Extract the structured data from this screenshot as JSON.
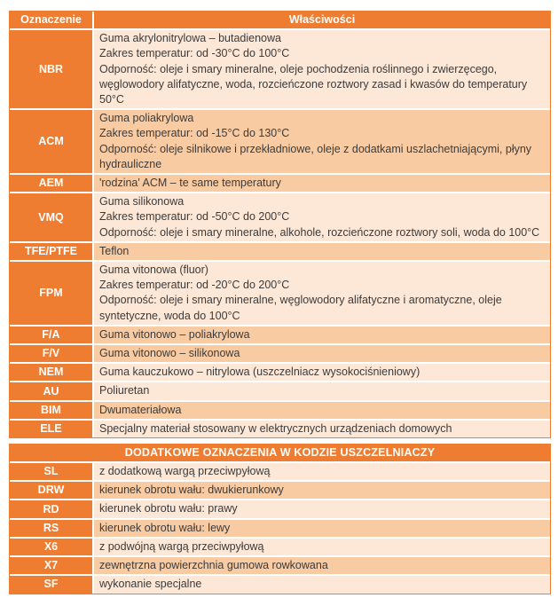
{
  "colors": {
    "accent_orange": "#EE7C31",
    "row_light": "#FDE7D6",
    "row_medium": "#F9CBA3",
    "header_text": "#FFFFFF",
    "body_text": "#3B3B3B"
  },
  "main_table": {
    "headers": {
      "code": "Oznaczenie",
      "properties": "Właściwości"
    },
    "rows": [
      {
        "code": "NBR",
        "desc": "Guma akrylonitrylowa – butadienowa\nZakres temperatur: od -30°C do 100°C\nOdporność: oleje i smary mineralne, oleje pochodzenia roślinnego i zwierzęcego, węglowodory alifatyczne, woda, rozcieńczone roztwory zasad i kwasów do temperatury 50°C"
      },
      {
        "code": "ACM",
        "desc": "Guma poliakrylowa\nZakres temperatur: od -15°C do 130°C\nOdporność: oleje silnikowe i przekładniowe, oleje z dodatkami uszlachetniającymi, płyny hydrauliczne"
      },
      {
        "code": "AEM",
        "desc": "'rodzina' ACM – te same temperatury"
      },
      {
        "code": "VMQ",
        "desc": "Guma silikonowa\nZakres temperatur: od -50°C do 200°C\nOdporność: oleje i smary mineralne, alkohole, rozcieńczone roztwory soli, woda do 100°C"
      },
      {
        "code": "TFE/PTFE",
        "desc": "Teflon"
      },
      {
        "code": "FPM",
        "desc": "Guma vitonowa (fluor)\nZakres temperatur: od -20°C do 200°C\nOdporność: oleje i smary mineralne, węglowodory alifatyczne i aromatyczne, oleje syntetyczne, woda do 100°C"
      },
      {
        "code": "F/A",
        "desc": "Guma vitonowo – poliakrylowa"
      },
      {
        "code": "F/V",
        "desc": "Guma vitonowo – silikonowa"
      },
      {
        "code": "NEM",
        "desc": "Guma kauczukowo – nitrylowa (uszczelniacz wysokociśnieniowy)"
      },
      {
        "code": "AU",
        "desc": "Poliuretan"
      },
      {
        "code": "BIM",
        "desc": "Dwumateriałowa"
      },
      {
        "code": "ELE",
        "desc": "Specjalny materiał stosowany w elektrycznych urządzeniach domowych"
      }
    ]
  },
  "extra_table": {
    "title": "DODATKOWE OZNACZENIA W KODZIE USZCZELNIACZY",
    "rows": [
      {
        "code": "SL",
        "desc": "z dodatkową wargą przeciwpyłową"
      },
      {
        "code": "DRW",
        "desc": "kierunek obrotu wału: dwukierunkowy"
      },
      {
        "code": "RD",
        "desc": "kierunek obrotu wału: prawy"
      },
      {
        "code": "RS",
        "desc": "kierunek obrotu wału: lewy"
      },
      {
        "code": "X6",
        "desc": "z podwójną wargą przeciwpyłową"
      },
      {
        "code": "X7",
        "desc": "zewnętrzna powierzchnia gumowa rowkowana"
      },
      {
        "code": "SF",
        "desc": "wykonanie specjalne"
      }
    ]
  }
}
